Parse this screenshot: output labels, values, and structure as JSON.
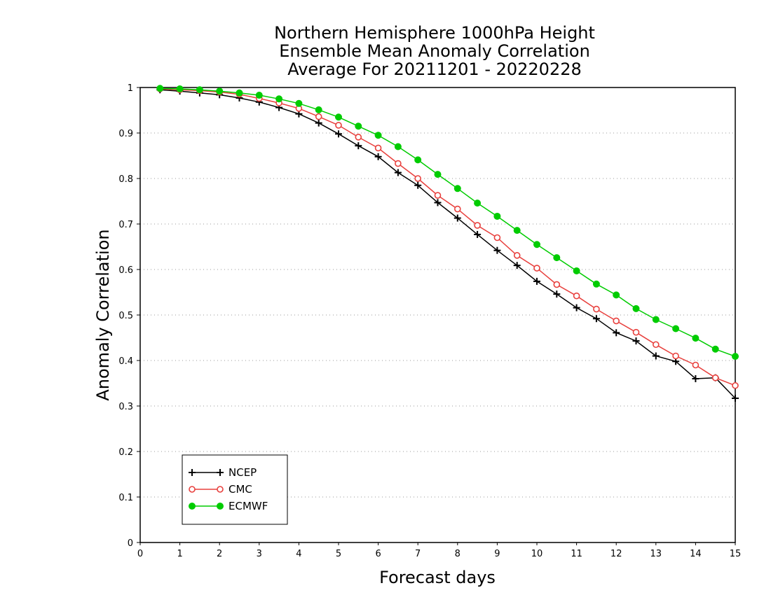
{
  "chart_data": {
    "type": "line",
    "title_lines": [
      "Northern Hemisphere 1000hPa Height",
      "Ensemble Mean Anomaly Correlation",
      "Average For 20211201 - 20220228"
    ],
    "xlabel": "Forecast days",
    "ylabel": "Anomaly Correlation",
    "xlim": [
      0,
      15
    ],
    "ylim": [
      0,
      1
    ],
    "xticks": [
      "0",
      "1",
      "2",
      "3",
      "4",
      "5",
      "6",
      "7",
      "8",
      "9",
      "10",
      "11",
      "12",
      "13",
      "14",
      "15"
    ],
    "yticks": [
      "0",
      "0.1",
      "0.2",
      "0.3",
      "0.4",
      "0.5",
      "0.6",
      "0.7",
      "0.8",
      "0.9",
      "1"
    ],
    "grid": "horizontal-dotted",
    "legend_position": "bottom-left",
    "x": [
      0.5,
      1,
      1.5,
      2,
      2.5,
      3,
      3.5,
      4,
      4.5,
      5,
      5.5,
      6,
      6.5,
      7,
      7.5,
      8,
      8.5,
      9,
      9.5,
      10,
      10.5,
      11,
      11.5,
      12,
      12.5,
      13,
      13.5,
      14,
      14.5,
      15
    ],
    "series": [
      {
        "name": "NCEP",
        "color": "#000000",
        "marker": "plus",
        "values": [
          0.995,
          0.992,
          0.988,
          0.984,
          0.977,
          0.968,
          0.956,
          0.942,
          0.922,
          0.898,
          0.872,
          0.848,
          0.813,
          0.785,
          0.747,
          0.713,
          0.677,
          0.642,
          0.609,
          0.574,
          0.546,
          0.516,
          0.492,
          0.461,
          0.443,
          0.41,
          0.398,
          0.36,
          0.362,
          0.317
        ]
      },
      {
        "name": "CMC",
        "color": "#e8403d",
        "marker": "open-circle",
        "values": [
          0.997,
          0.995,
          0.993,
          0.99,
          0.985,
          0.976,
          0.966,
          0.954,
          0.936,
          0.917,
          0.891,
          0.867,
          0.833,
          0.8,
          0.763,
          0.733,
          0.697,
          0.67,
          0.631,
          0.603,
          0.567,
          0.542,
          0.513,
          0.487,
          0.462,
          0.435,
          0.41,
          0.39,
          0.362,
          0.345
        ]
      },
      {
        "name": "ECMWF",
        "color": "#00cc00",
        "marker": "filled-circle",
        "values": [
          0.998,
          0.997,
          0.995,
          0.992,
          0.988,
          0.983,
          0.975,
          0.965,
          0.951,
          0.935,
          0.915,
          0.895,
          0.87,
          0.841,
          0.809,
          0.778,
          0.746,
          0.717,
          0.686,
          0.655,
          0.626,
          0.597,
          0.568,
          0.544,
          0.514,
          0.49,
          0.47,
          0.449,
          0.425,
          0.409
        ]
      }
    ]
  }
}
